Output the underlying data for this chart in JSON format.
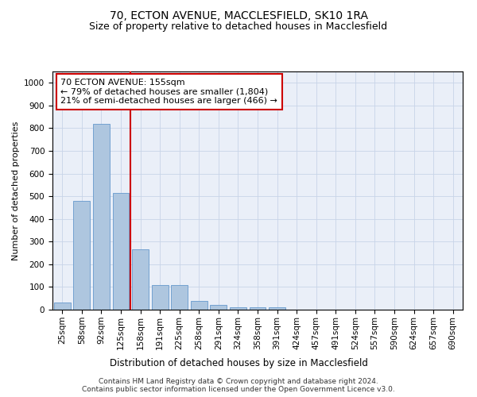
{
  "title1": "70, ECTON AVENUE, MACCLESFIELD, SK10 1RA",
  "title2": "Size of property relative to detached houses in Macclesfield",
  "xlabel": "Distribution of detached houses by size in Macclesfield",
  "ylabel": "Number of detached properties",
  "categories": [
    "25sqm",
    "58sqm",
    "92sqm",
    "125sqm",
    "158sqm",
    "191sqm",
    "225sqm",
    "258sqm",
    "291sqm",
    "324sqm",
    "358sqm",
    "391sqm",
    "424sqm",
    "457sqm",
    "491sqm",
    "524sqm",
    "557sqm",
    "590sqm",
    "624sqm",
    "657sqm",
    "690sqm"
  ],
  "values": [
    33,
    478,
    820,
    515,
    265,
    110,
    110,
    40,
    22,
    10,
    10,
    10,
    0,
    0,
    0,
    0,
    0,
    0,
    0,
    0,
    0
  ],
  "bar_color": "#aec6df",
  "bar_edge_color": "#6699cc",
  "vline_color": "#cc0000",
  "annotation_text": "70 ECTON AVENUE: 155sqm\n← 79% of detached houses are smaller (1,804)\n21% of semi-detached houses are larger (466) →",
  "annotation_box_color": "#cc0000",
  "ylim": [
    0,
    1050
  ],
  "yticks": [
    0,
    100,
    200,
    300,
    400,
    500,
    600,
    700,
    800,
    900,
    1000
  ],
  "grid_color": "#c8d4e8",
  "background_color": "#eaeff8",
  "footer_text": "Contains HM Land Registry data © Crown copyright and database right 2024.\nContains public sector information licensed under the Open Government Licence v3.0.",
  "title1_fontsize": 10,
  "title2_fontsize": 9,
  "xlabel_fontsize": 8.5,
  "ylabel_fontsize": 8,
  "tick_fontsize": 7.5,
  "annotation_fontsize": 8,
  "footer_fontsize": 6.5
}
